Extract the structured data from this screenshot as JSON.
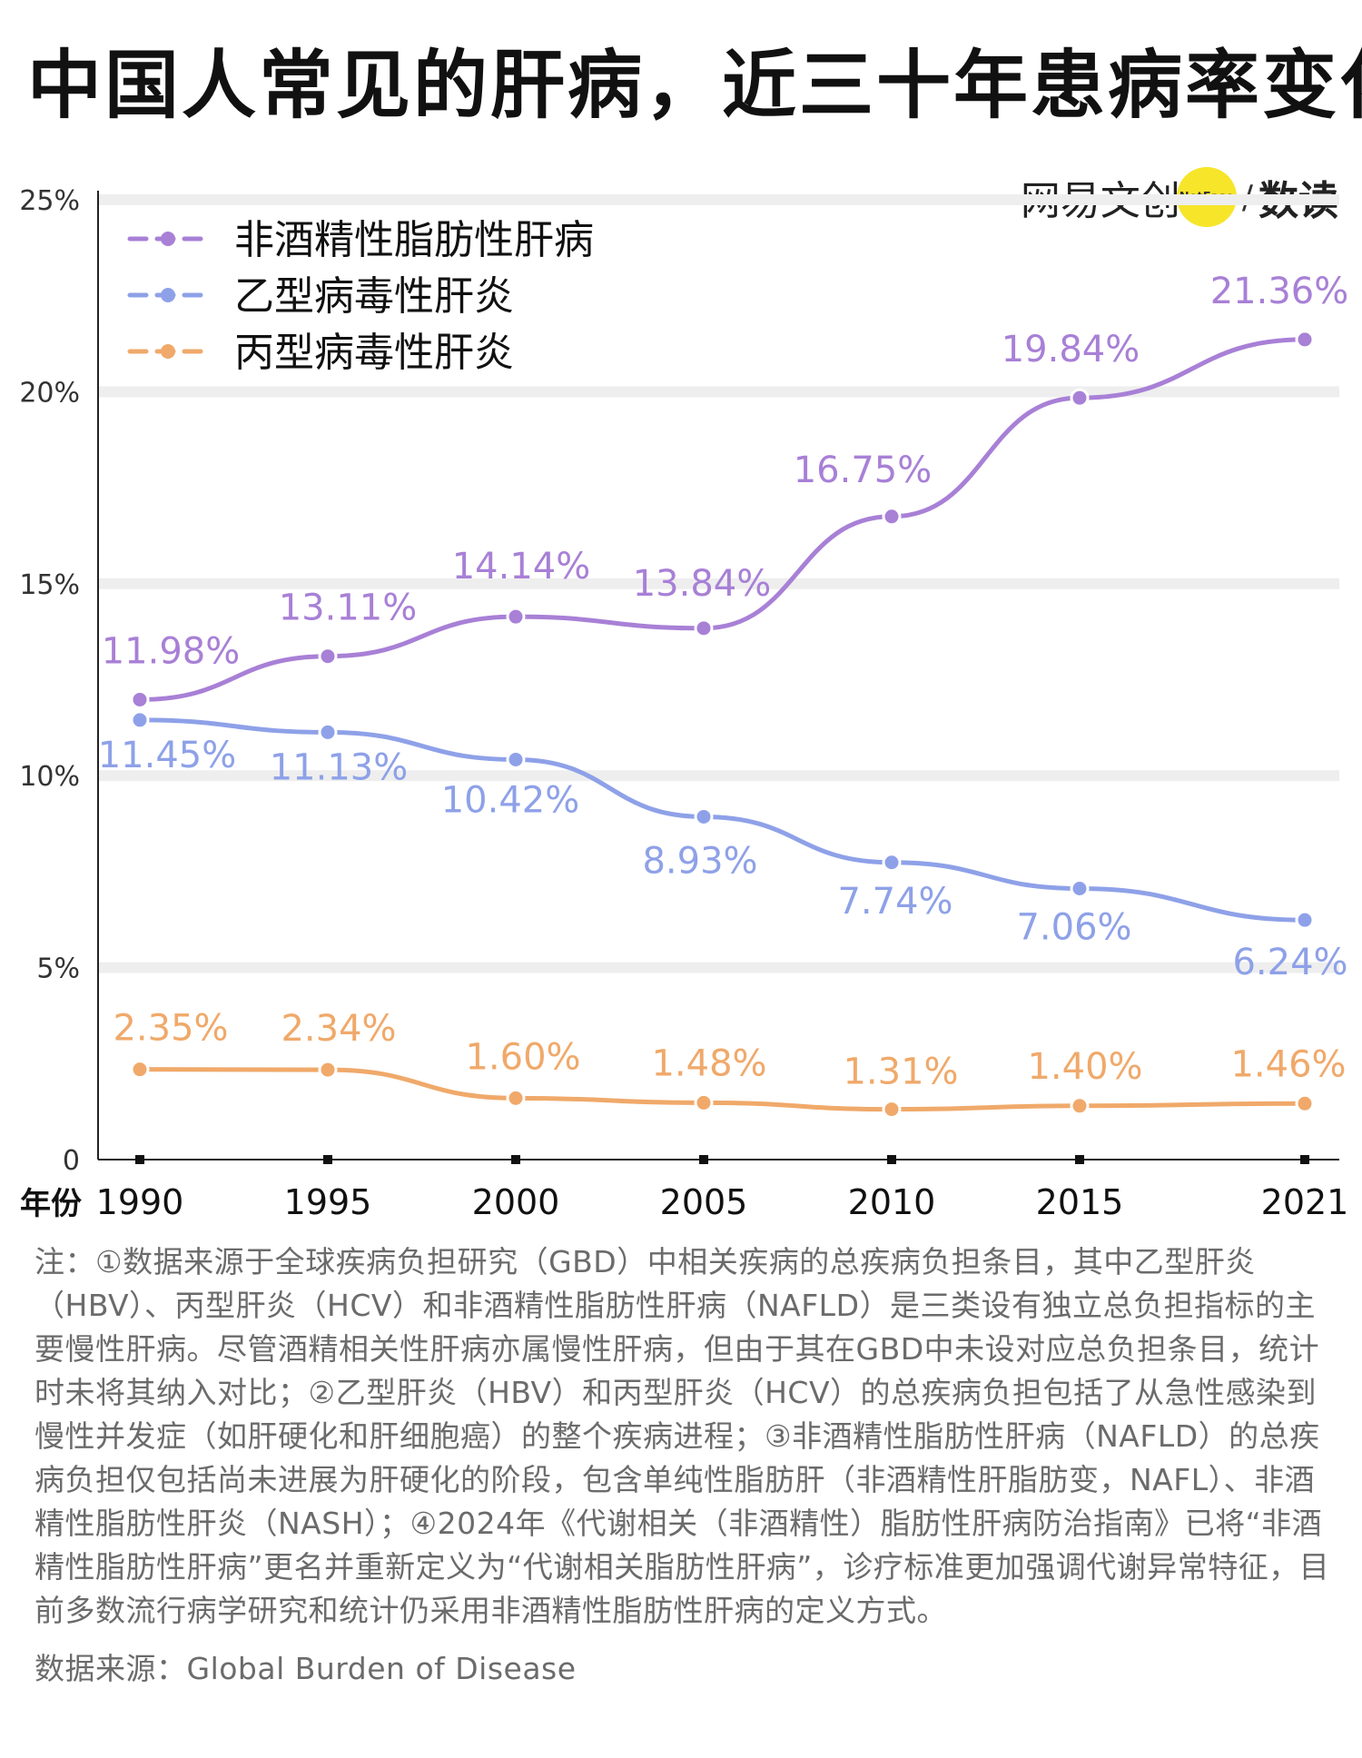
{
  "title": "中国人常见的肝病，近三十年患病率变化",
  "brand": {
    "name": "网易文创",
    "badge": "NetEase",
    "slash": "/",
    "sub": "数读"
  },
  "chart_data": {
    "type": "line",
    "x": [
      "1990",
      "1995",
      "2000",
      "2005",
      "2010",
      "2015",
      "2021"
    ],
    "xlabel": "年份",
    "ylabel": "",
    "ylim": [
      0,
      25
    ],
    "yticks": [
      "0",
      "5%",
      "10%",
      "15%",
      "20%",
      "25%"
    ],
    "grid": true,
    "legend": "top-left",
    "series": [
      {
        "name": "非酒精性脂肪性肝病",
        "color": "#a880d6",
        "values": [
          11.98,
          13.11,
          14.14,
          13.84,
          16.75,
          19.84,
          21.36
        ],
        "labels": [
          "11.98%",
          "13.11%",
          "14.14%",
          "13.84%",
          "16.75%",
          "19.84%",
          "21.36%"
        ]
      },
      {
        "name": "乙型病毒性肝炎",
        "color": "#8ea1e8",
        "values": [
          11.45,
          11.13,
          10.42,
          8.93,
          7.74,
          7.06,
          6.24
        ],
        "labels": [
          "11.45%",
          "11.13%",
          "10.42%",
          "8.93%",
          "7.74%",
          "7.06%",
          "6.24%"
        ]
      },
      {
        "name": "丙型病毒性肝炎",
        "color": "#f0a96a",
        "values": [
          2.35,
          2.34,
          1.6,
          1.48,
          1.31,
          1.4,
          1.46
        ],
        "labels": [
          "2.35%",
          "2.34%",
          "1.60%",
          "1.48%",
          "1.31%",
          "1.40%",
          "1.46%"
        ]
      }
    ]
  },
  "notes": {
    "text": "注：①数据来源于全球疾病负担研究（GBD）中相关疾病的总疾病负担条目，其中乙型肝炎（HBV）、丙型肝炎（HCV）和非酒精性脂肪性肝病（NAFLD）是三类设有独立总负担指标的主要慢性肝病。尽管酒精相关性肝病亦属慢性肝病，但由于其在GBD中未设对应总负担条目，统计时未将其纳入对比；②乙型肝炎（HBV）和丙型肝炎（HCV）的总疾病负担包括了从急性感染到慢性并发症（如肝硬化和肝细胞癌）的整个疾病进程；③非酒精性脂肪性肝病（NAFLD）的总疾病负担仅包括尚未进展为肝硬化的阶段，包含单纯性脂肪肝（非酒精性肝脂肪变，NAFL）、非酒精性脂肪性肝炎（NASH）；④2024年《代谢相关（非酒精性）脂肪性肝病防治指南》已将“非酒精性脂肪性肝病”更名并重新定义为“代谢相关脂肪性肝病”，诊疗标准更加强调代谢异常特征，目前多数流行病学研究和统计仍采用非酒精性脂肪性肝病的定义方式。",
    "source": "数据来源：Global Burden of Disease"
  }
}
